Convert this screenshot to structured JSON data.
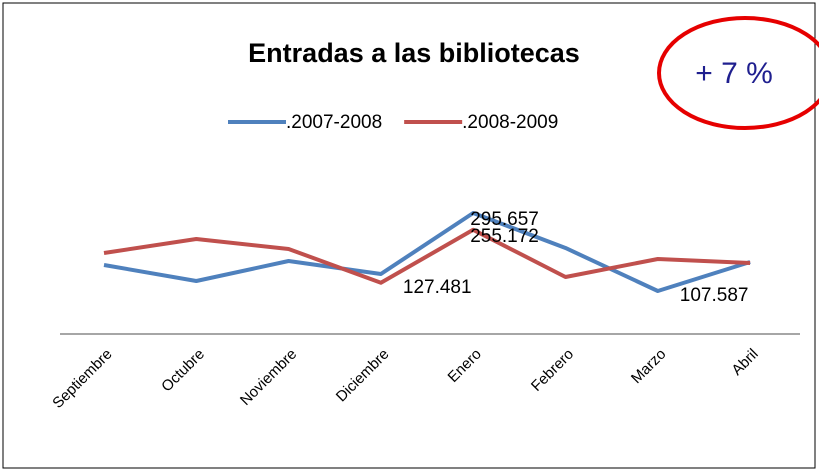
{
  "chart_data": {
    "type": "line",
    "title": "Entradas a las bibliotecas",
    "annotation": "+ 7 %",
    "categories": [
      "Septiembre",
      "Octubre",
      "Noviembre",
      "Diciembre",
      "Enero",
      "Febrero",
      "Marzo",
      "Abril"
    ],
    "series": [
      {
        "name": ".2007-2008",
        "color": "#4f81bd",
        "values": [
          170300,
          131700,
          179900,
          148600,
          295657,
          211300,
          107587,
          177500
        ],
        "value_labels": [
          null,
          null,
          null,
          null,
          "295.657",
          null,
          "107.587",
          null
        ]
      },
      {
        "name": ".2008-2009",
        "color": "#c0504d",
        "values": [
          199200,
          233000,
          208900,
          127481,
          255172,
          141400,
          184700,
          175100
        ],
        "value_labels": [
          null,
          null,
          null,
          "127.481",
          "255.172",
          null,
          null,
          null
        ]
      }
    ],
    "legend": "top"
  }
}
